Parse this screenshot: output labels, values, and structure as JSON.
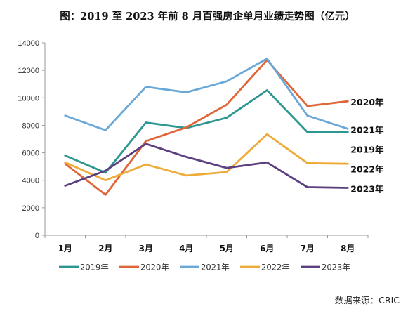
{
  "title": "图：2019 至 2023 年前 8 月百强房企单月业绩走势图（亿元）",
  "source": "数据来源：CRIC",
  "chart_data": {
    "type": "line",
    "title": "图：2019 至 2023 年前 8 月百强房企单月业绩走势图（亿元）",
    "xlabel": "",
    "ylabel": "",
    "categories": [
      "1月",
      "2月",
      "3月",
      "4月",
      "5月",
      "6月",
      "7月",
      "8月"
    ],
    "ylim": [
      0,
      14000
    ],
    "yticks": [
      0,
      2000,
      4000,
      6000,
      8000,
      10000,
      12000,
      14000
    ],
    "grid": false,
    "legend_position": "bottom",
    "series": [
      {
        "name": "2019年",
        "color": "#2e9690",
        "values": [
          5800,
          4550,
          8200,
          7800,
          8550,
          10550,
          7500,
          7500
        ],
        "end_label": "2019年"
      },
      {
        "name": "2020年",
        "color": "#e0663a",
        "values": [
          5200,
          2950,
          6850,
          7850,
          9500,
          12750,
          9400,
          9750
        ],
        "end_label": "2020年"
      },
      {
        "name": "2021年",
        "color": "#6aa8d8",
        "values": [
          8700,
          7650,
          10800,
          10400,
          11200,
          12850,
          8700,
          7750
        ],
        "end_label": "2021年"
      },
      {
        "name": "2022年",
        "color": "#eeab3a",
        "values": [
          5300,
          4000,
          5150,
          4350,
          4600,
          7350,
          5250,
          5200
        ],
        "end_label": "2022年"
      },
      {
        "name": "2023年",
        "color": "#5c3f7e",
        "values": [
          3600,
          4700,
          6650,
          5700,
          4900,
          5300,
          3500,
          3450
        ],
        "end_label": "2023年"
      }
    ]
  }
}
